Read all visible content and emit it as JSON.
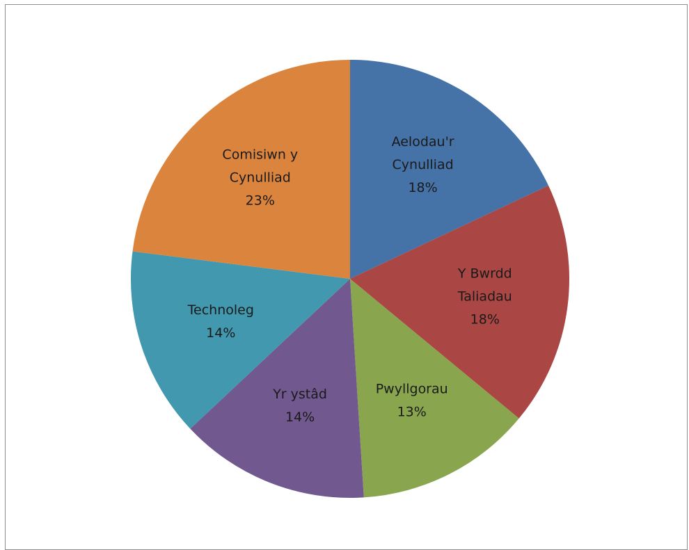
{
  "chart_data": {
    "type": "pie",
    "title": "",
    "legend": "none",
    "slices": [
      {
        "label_lines": [
          "Aelodau'r",
          "Cynulliad"
        ],
        "percent_label": "18%",
        "value": 18,
        "color": "#4572A7"
      },
      {
        "label_lines": [
          "Y Bwrdd",
          "Taliadau"
        ],
        "percent_label": "18%",
        "value": 18,
        "color": "#AA4643"
      },
      {
        "label_lines": [
          "Pwyllgorau"
        ],
        "percent_label": "13%",
        "value": 13,
        "color": "#89A54E"
      },
      {
        "label_lines": [
          "Yr ystâd"
        ],
        "percent_label": "14%",
        "value": 14,
        "color": "#71588F"
      },
      {
        "label_lines": [
          "Technoleg"
        ],
        "percent_label": "14%",
        "value": 14,
        "color": "#4198AF"
      },
      {
        "label_lines": [
          "Comisiwn y",
          "Cynulliad"
        ],
        "percent_label": "23%",
        "value": 23,
        "color": "#DB843D"
      }
    ]
  }
}
